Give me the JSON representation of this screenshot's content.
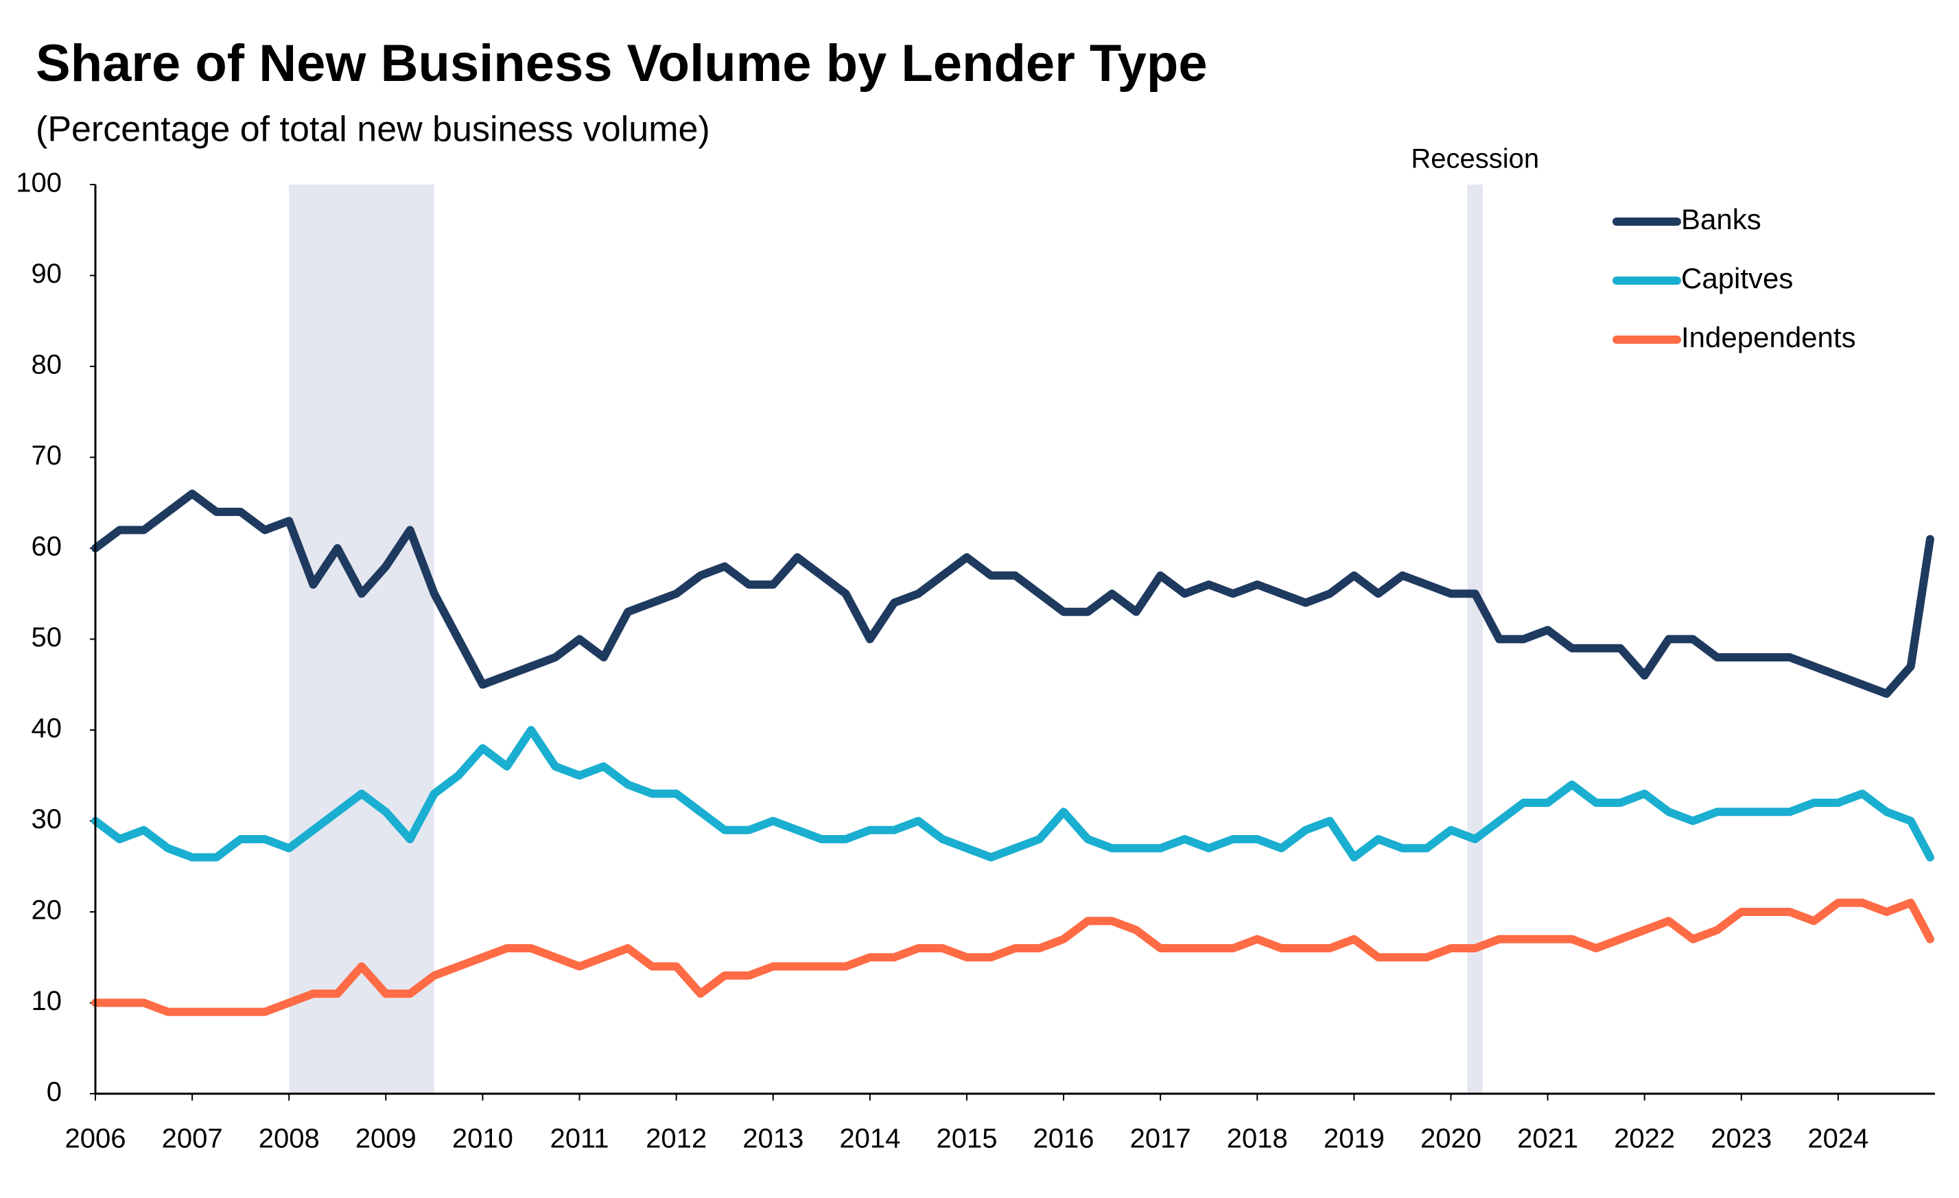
{
  "chart_data": {
    "type": "line",
    "title": "Share of New Business Volume by Lender Type",
    "subtitle": "(Percentage of total new business volume)",
    "recession_label": "Recession",
    "recessions": [
      [
        2008,
        2009.5
      ],
      [
        2020.17,
        2020.33
      ]
    ],
    "recession_color": "#e4e7f0",
    "x": [
      2006,
      2006.25,
      2006.5,
      2006.75,
      2007,
      2007.25,
      2007.5,
      2007.75,
      2008,
      2008.25,
      2008.5,
      2008.75,
      2009,
      2009.25,
      2009.5,
      2009.75,
      2010,
      2010.25,
      2010.5,
      2010.75,
      2011,
      2011.25,
      2011.5,
      2011.75,
      2012,
      2012.25,
      2012.5,
      2012.75,
      2013,
      2013.25,
      2013.5,
      2013.75,
      2014,
      2014.25,
      2014.5,
      2014.75,
      2015,
      2015.25,
      2015.5,
      2015.75,
      2016,
      2016.25,
      2016.5,
      2016.75,
      2017,
      2017.25,
      2017.5,
      2017.75,
      2018,
      2018.25,
      2018.5,
      2018.75,
      2019,
      2019.25,
      2019.5,
      2019.75,
      2020,
      2020.25,
      2020.5,
      2020.75,
      2021,
      2021.25,
      2021.5,
      2021.75,
      2022,
      2022.25,
      2022.5,
      2022.75,
      2023,
      2023.25,
      2023.5,
      2023.75,
      2024,
      2024.25,
      2024.5,
      2024.75,
      2024.95
    ],
    "series": [
      {
        "name": "Banks",
        "color": "#1f3a5f",
        "values": [
          60,
          62,
          62,
          64,
          66,
          64,
          64,
          62,
          63,
          56,
          60,
          55,
          58,
          62,
          55,
          50,
          45,
          46,
          47,
          48,
          50,
          48,
          53,
          54,
          55,
          57,
          58,
          56,
          56,
          59,
          57,
          55,
          50,
          54,
          55,
          57,
          59,
          57,
          57,
          55,
          53,
          53,
          55,
          53,
          57,
          55,
          56,
          55,
          56,
          55,
          54,
          55,
          57,
          55,
          57,
          56,
          55,
          55,
          50,
          50,
          51,
          49,
          49,
          49,
          46,
          50,
          50,
          48,
          48,
          48,
          48,
          47,
          46,
          45,
          44,
          47,
          61
        ]
      },
      {
        "name": "Capitves",
        "color": "#1aaed0",
        "values": [
          30,
          28,
          29,
          27,
          26,
          26,
          28,
          28,
          27,
          29,
          31,
          33,
          31,
          28,
          33,
          35,
          38,
          36,
          40,
          36,
          35,
          36,
          34,
          33,
          33,
          31,
          29,
          29,
          30,
          29,
          28,
          28,
          29,
          29,
          30,
          28,
          27,
          26,
          27,
          28,
          31,
          28,
          27,
          27,
          27,
          28,
          27,
          28,
          28,
          27,
          29,
          30,
          26,
          28,
          27,
          27,
          29,
          28,
          30,
          32,
          32,
          34,
          32,
          32,
          33,
          31,
          30,
          31,
          31,
          31,
          31,
          32,
          32,
          33,
          31,
          30,
          26
        ]
      },
      {
        "name": "Independents",
        "color": "#ff6b45",
        "values": [
          10,
          10,
          10,
          9,
          9,
          9,
          9,
          9,
          10,
          11,
          11,
          14,
          11,
          11,
          13,
          14,
          15,
          16,
          16,
          15,
          14,
          15,
          16,
          14,
          14,
          11,
          13,
          13,
          14,
          14,
          14,
          14,
          15,
          15,
          16,
          16,
          15,
          15,
          16,
          16,
          17,
          19,
          19,
          18,
          16,
          16,
          16,
          16,
          17,
          16,
          16,
          16,
          17,
          15,
          15,
          15,
          16,
          16,
          17,
          17,
          17,
          17,
          16,
          17,
          18,
          19,
          17,
          18,
          20,
          20,
          20,
          19,
          21,
          21,
          20,
          21,
          17
        ]
      }
    ],
    "xlim": [
      2006,
      2025
    ],
    "xticks": [
      2006,
      2007,
      2008,
      2009,
      2010,
      2011,
      2012,
      2013,
      2014,
      2015,
      2016,
      2017,
      2018,
      2019,
      2020,
      2021,
      2022,
      2023,
      2024
    ],
    "ylim": [
      0,
      100
    ],
    "yticks": [
      0,
      10,
      20,
      30,
      40,
      50,
      60,
      70,
      80,
      90,
      100
    ],
    "legend": "top-right"
  }
}
